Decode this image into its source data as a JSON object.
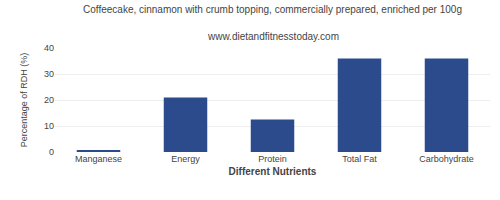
{
  "chart_data": {
    "type": "bar",
    "title": "Coffeecake, cinnamon with crumb topping, commercially prepared, enriched per 100g",
    "subtitle": "www.dietandfitnesstoday.com",
    "xlabel": "Different Nutrients",
    "ylabel": "Percentage of RDH (%)",
    "categories": [
      "Manganese",
      "Energy",
      "Protein",
      "Total Fat",
      "Carbohydrate"
    ],
    "values": [
      0.5,
      21,
      12.5,
      36,
      36
    ],
    "color": "#2b4b8c",
    "ylim": [
      0,
      40
    ],
    "yticks": [
      0,
      10,
      20,
      30,
      40
    ],
    "grid": true
  }
}
